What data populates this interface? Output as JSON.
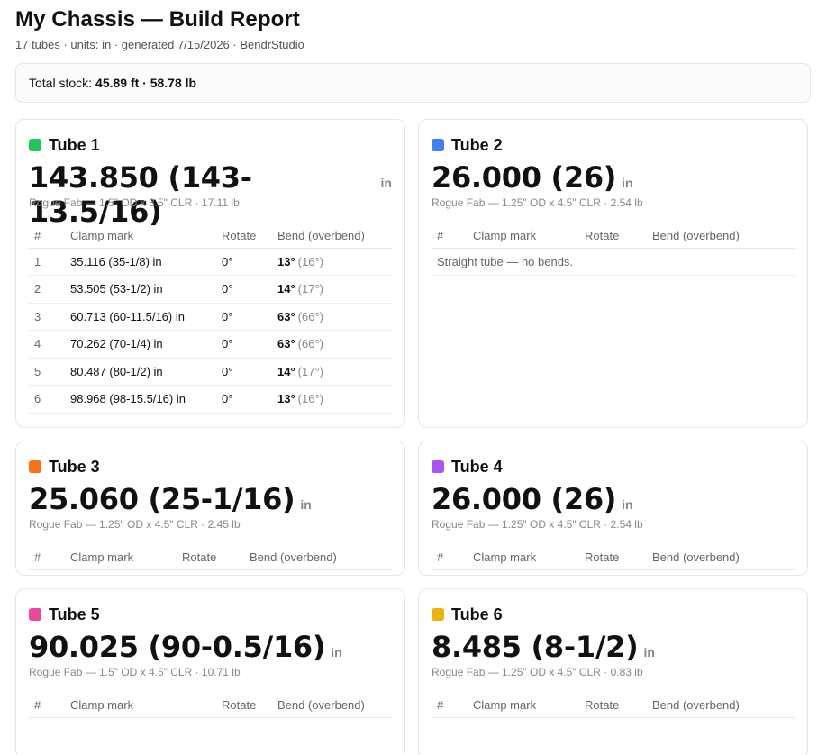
{
  "report": {
    "title": "My Chassis — Build Report",
    "subtitle": "17 tubes · units: in · generated 7/15/2026 · BendrStudio",
    "stock_label": "Total stock:",
    "stock_value": "45.89 ft · 58.78 lb"
  },
  "table_headers": {
    "idx": "#",
    "clamp": "Clamp mark",
    "rotate": "Rotate",
    "bend": "Bend (overbend)"
  },
  "empty_text": "Straight tube — no bends.",
  "unit": "in",
  "tubes": [
    {
      "name": "Tube 1",
      "color": "#22c55e",
      "length": "143.850 (143-13.5/16)",
      "spec": "Rogue Fab — 1.5\" OD x 3.5\" CLR · 17.11 lb",
      "bends": [
        {
          "idx": "1",
          "clamp": "35.116 (35-1/8) in",
          "rotate": "0°",
          "bend": "13°",
          "over": "(16°)"
        },
        {
          "idx": "2",
          "clamp": "53.505 (53-1/2) in",
          "rotate": "0°",
          "bend": "14°",
          "over": "(17°)"
        },
        {
          "idx": "3",
          "clamp": "60.713 (60-11.5/16) in",
          "rotate": "0°",
          "bend": "63°",
          "over": "(66°)"
        },
        {
          "idx": "4",
          "clamp": "70.262 (70-1/4) in",
          "rotate": "0°",
          "bend": "63°",
          "over": "(66°)"
        },
        {
          "idx": "5",
          "clamp": "80.487 (80-1/2) in",
          "rotate": "0°",
          "bend": "14°",
          "over": "(17°)"
        },
        {
          "idx": "6",
          "clamp": "98.968 (98-15.5/16) in",
          "rotate": "0°",
          "bend": "13°",
          "over": "(16°)"
        }
      ]
    },
    {
      "name": "Tube 2",
      "color": "#3b82f6",
      "length": "26.000 (26)",
      "spec": "Rogue Fab — 1.25\" OD x 4.5\" CLR · 2.54 lb",
      "bends": []
    },
    {
      "name": "Tube 3",
      "color": "#f97316",
      "length": "25.060 (25-1/16)",
      "spec": "Rogue Fab — 1.25\" OD x 4.5\" CLR · 2.45 lb",
      "bends": []
    },
    {
      "name": "Tube 4",
      "color": "#a855f7",
      "length": "26.000 (26)",
      "spec": "Rogue Fab — 1.25\" OD x 4.5\" CLR · 2.54 lb",
      "bends": []
    },
    {
      "name": "Tube 5",
      "color": "#ec4899",
      "length": "90.025 (90-0.5/16)",
      "spec": "Rogue Fab — 1.5\" OD x 4.5\" CLR · 10.71 lb",
      "bends": []
    },
    {
      "name": "Tube 6",
      "color": "#eab308",
      "length": "8.485 (8-1/2)",
      "spec": "Rogue Fab — 1.25\" OD x 4.5\" CLR · 0.83 lb",
      "bends": []
    }
  ]
}
